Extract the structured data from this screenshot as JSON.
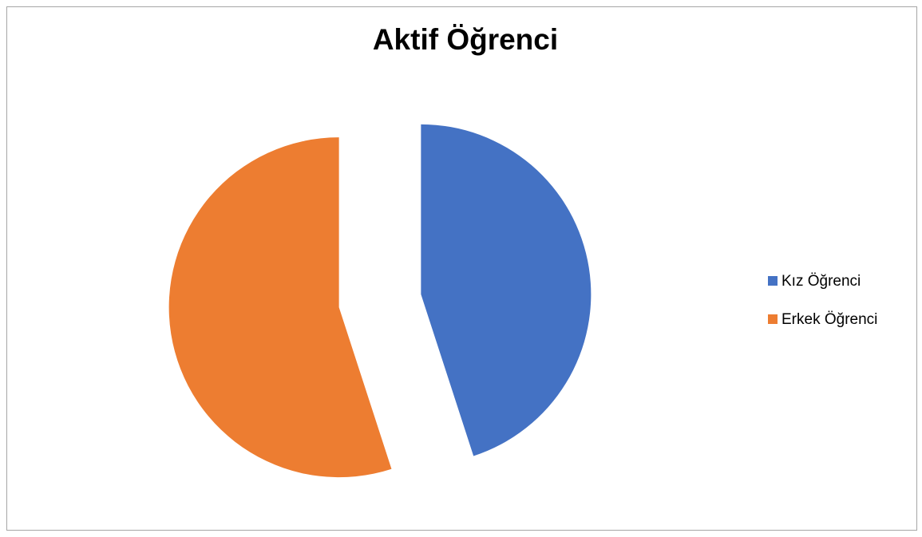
{
  "chart_data": {
    "type": "pie",
    "title": "Aktif Öğrenci",
    "categories": [
      "Kız Öğrenci",
      "Erkek Öğrenci"
    ],
    "values": [
      45,
      55
    ],
    "colors": [
      "#4472c4",
      "#ed7d31"
    ],
    "exploded": true,
    "legend": "right"
  }
}
